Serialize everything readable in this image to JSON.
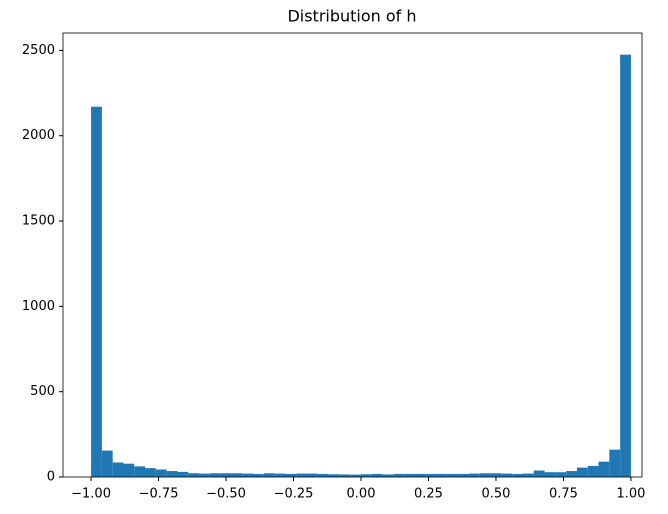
{
  "chart_data": {
    "type": "histogram",
    "title": "Distribution of h",
    "bins": [
      -1,
      -0.96,
      -0.92,
      -0.88,
      -0.84,
      -0.8,
      -0.76,
      -0.72,
      -0.68,
      -0.64,
      -0.6,
      -0.56,
      -0.52,
      -0.48,
      -0.44,
      -0.4,
      -0.36,
      -0.32,
      -0.28,
      -0.24,
      -0.2,
      -0.16,
      -0.12,
      -0.08,
      -0.04,
      0,
      0.04,
      0.08,
      0.12,
      0.16,
      0.2,
      0.24,
      0.28,
      0.32,
      0.36,
      0.4,
      0.44,
      0.48,
      0.52,
      0.56,
      0.6,
      0.64,
      0.68,
      0.72,
      0.76,
      0.8,
      0.84,
      0.88,
      0.92,
      0.96,
      1
    ],
    "values": [
      2170,
      155,
      85,
      78,
      62,
      52,
      44,
      35,
      30,
      22,
      20,
      22,
      22,
      22,
      20,
      18,
      22,
      20,
      18,
      20,
      20,
      18,
      16,
      15,
      14,
      16,
      18,
      15,
      18,
      18,
      18,
      18,
      18,
      18,
      18,
      20,
      22,
      22,
      20,
      18,
      20,
      38,
      28,
      28,
      35,
      55,
      65,
      90,
      160,
      2475
    ],
    "color": "#1f77b4",
    "xlim": [
      -1.104,
      1.041
    ],
    "ylim": [
      0,
      2602
    ],
    "xticks": [
      {
        "value": -1,
        "label": "−1.00"
      },
      {
        "value": -0.75,
        "label": "−0.75"
      },
      {
        "value": -0.5,
        "label": "−0.50"
      },
      {
        "value": -0.25,
        "label": "−0.25"
      },
      {
        "value": 0,
        "label": "0.00"
      },
      {
        "value": 0.25,
        "label": "0.25"
      },
      {
        "value": 0.5,
        "label": "0.50"
      },
      {
        "value": 0.75,
        "label": "0.75"
      },
      {
        "value": 1,
        "label": "1.00"
      }
    ],
    "yticks": [
      0,
      500,
      1000,
      1500,
      2000,
      2500
    ]
  }
}
